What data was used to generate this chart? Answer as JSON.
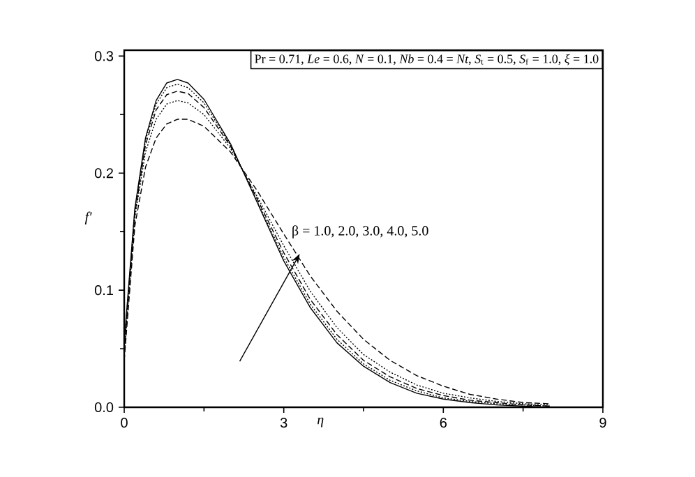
{
  "chart_data": {
    "type": "line",
    "xlabel": "η",
    "ylabel": "f′",
    "x": [
      0,
      0.2,
      0.4,
      0.6,
      0.8,
      1.0,
      1.2,
      1.5,
      2.0,
      2.5,
      3.0,
      3.5,
      4.0,
      4.5,
      5.0,
      5.5,
      6.0,
      6.5,
      7.0,
      7.5,
      8.0
    ],
    "series": [
      {
        "color": "#000000",
        "line_style": "solid",
        "values": [
          0.056,
          0.17,
          0.23,
          0.262,
          0.277,
          0.28,
          0.277,
          0.263,
          0.225,
          0.175,
          0.125,
          0.085,
          0.055,
          0.035,
          0.021,
          0.012,
          0.007,
          0.004,
          0.002,
          0.001,
          0.0
        ]
      },
      {
        "color": "#000000",
        "line_style": "dotted",
        "values": [
          0.052,
          0.168,
          0.228,
          0.259,
          0.273,
          0.276,
          0.273,
          0.26,
          0.224,
          0.176,
          0.128,
          0.088,
          0.058,
          0.037,
          0.023,
          0.014,
          0.008,
          0.005,
          0.003,
          0.002,
          0.001
        ]
      },
      {
        "color": "#000000",
        "line_style": "dashed",
        "values": [
          0.048,
          0.165,
          0.224,
          0.254,
          0.267,
          0.27,
          0.268,
          0.256,
          0.223,
          0.178,
          0.132,
          0.092,
          0.062,
          0.04,
          0.026,
          0.016,
          0.01,
          0.006,
          0.004,
          0.002,
          0.001
        ]
      },
      {
        "color": "#000000",
        "line_style": "dotted",
        "values": [
          0.044,
          0.162,
          0.218,
          0.246,
          0.259,
          0.262,
          0.26,
          0.25,
          0.221,
          0.18,
          0.138,
          0.099,
          0.068,
          0.045,
          0.03,
          0.019,
          0.012,
          0.008,
          0.005,
          0.003,
          0.002
        ]
      },
      {
        "color": "#000000",
        "line_style": "dashed",
        "values": [
          0.04,
          0.155,
          0.205,
          0.23,
          0.242,
          0.246,
          0.246,
          0.24,
          0.218,
          0.185,
          0.148,
          0.112,
          0.082,
          0.058,
          0.04,
          0.027,
          0.018,
          0.011,
          0.007,
          0.004,
          0.003
        ]
      }
    ],
    "xlim": [
      0,
      9
    ],
    "xticks": [
      0,
      3,
      6,
      9
    ],
    "ylim": [
      0,
      0.305
    ],
    "yticks": [
      {
        "value": 0,
        "label": "0.0"
      },
      0.1,
      0.2,
      0.3
    ],
    "grid": false,
    "marker": "none",
    "annotations": [
      "Pr = 0.71, *Le* = 0.6, *N* = 0.1, *Nb* = 0.4 = *Nt*, *S*$_{t}$ = 0.5, *S*$_{f}$ = 1.0, *ξ* = 1.0",
      {
        "text": "β = 1.0, 2.0, 3.0, 4.0, 5.0",
        "x": 3.3,
        "y": 0.131
      }
    ]
  }
}
